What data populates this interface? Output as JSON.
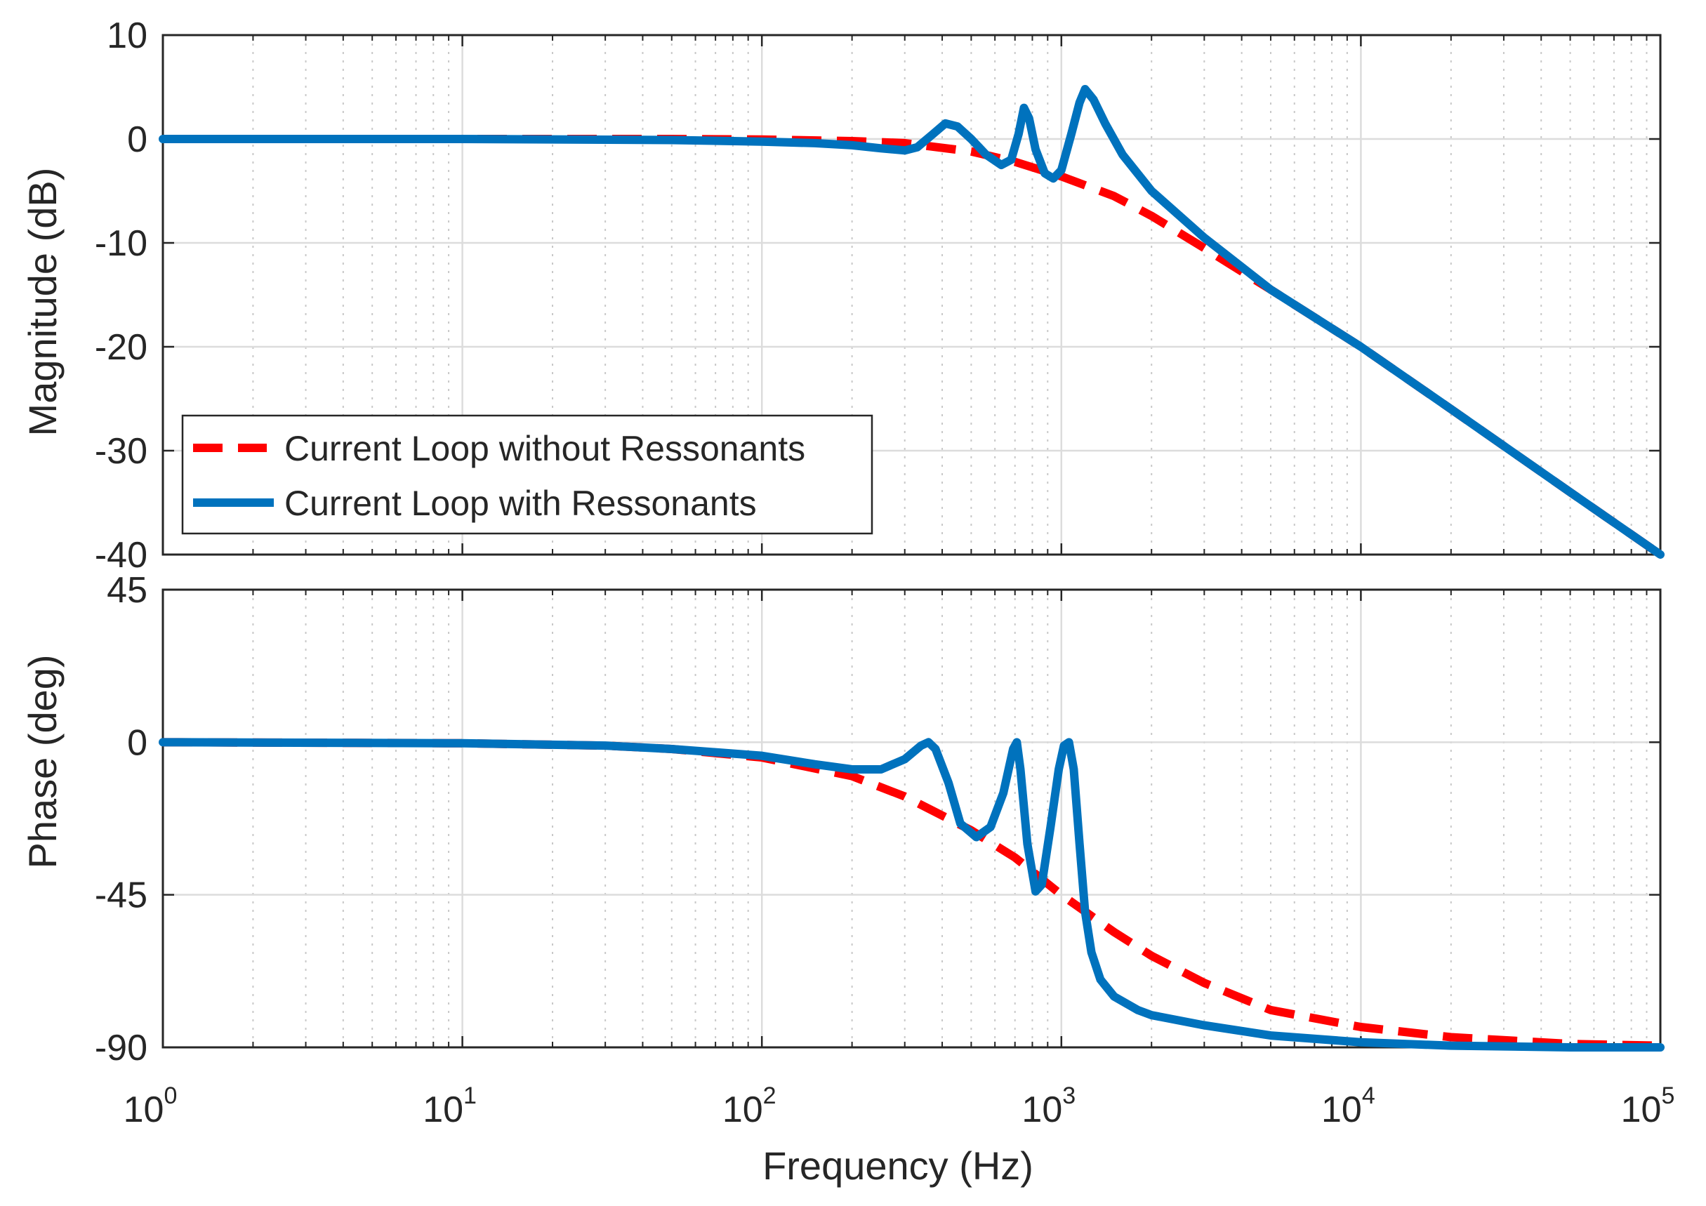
{
  "chart_data": {
    "type": "line",
    "title": "",
    "xlabel": "Frequency (Hz)",
    "x_scale": "log",
    "xlim": [
      1,
      100000
    ],
    "x_ticks": [
      {
        "base": "10",
        "exp": "0",
        "value": 1
      },
      {
        "base": "10",
        "exp": "1",
        "value": 10
      },
      {
        "base": "10",
        "exp": "2",
        "value": 100
      },
      {
        "base": "10",
        "exp": "3",
        "value": 1000
      },
      {
        "base": "10",
        "exp": "4",
        "value": 10000
      },
      {
        "base": "10",
        "exp": "5",
        "value": 100000
      }
    ],
    "grid": true,
    "legend": {
      "location": "bottom-left of magnitude plot",
      "entries": [
        {
          "label": "Current Loop without Ressonants",
          "color": "#ff0000",
          "style": "dashed"
        },
        {
          "label": "Current Loop with Ressonants",
          "color": "#0072bd",
          "style": "solid"
        }
      ]
    },
    "subplots": [
      {
        "name": "magnitude",
        "ylabel": "Magnitude (dB)",
        "ylim": [
          -40,
          10
        ],
        "y_ticks": [
          {
            "label": "10",
            "value": 10
          },
          {
            "label": "0",
            "value": 0
          },
          {
            "label": "-10",
            "value": -10
          },
          {
            "label": "-20",
            "value": -20
          },
          {
            "label": "-30",
            "value": -30
          },
          {
            "label": "-40",
            "value": -40
          }
        ],
        "series": [
          {
            "name": "Current Loop without Ressonants",
            "color": "#ff0000",
            "style": "dashed",
            "points": [
              [
                1,
                0
              ],
              [
                10,
                0
              ],
              [
                50,
                0
              ],
              [
                100,
                -0.05
              ],
              [
                200,
                -0.2
              ],
              [
                300,
                -0.4
              ],
              [
                500,
                -1.2
              ],
              [
                700,
                -2.2
              ],
              [
                1000,
                -3.6
              ],
              [
                1500,
                -5.5
              ],
              [
                2000,
                -7.4
              ],
              [
                3000,
                -10.5
              ],
              [
                5000,
                -14.5
              ],
              [
                10000,
                -20
              ],
              [
                20000,
                -26
              ],
              [
                50000,
                -34
              ],
              [
                100000,
                -40
              ]
            ]
          },
          {
            "name": "Current Loop with Ressonants",
            "color": "#0072bd",
            "style": "solid",
            "points": [
              [
                1,
                0
              ],
              [
                10,
                0
              ],
              [
                50,
                -0.1
              ],
              [
                100,
                -0.25
              ],
              [
                150,
                -0.4
              ],
              [
                200,
                -0.6
              ],
              [
                250,
                -0.9
              ],
              [
                300,
                -1.1
              ],
              [
                330,
                -0.8
              ],
              [
                370,
                0.4
              ],
              [
                410,
                1.5
              ],
              [
                450,
                1.2
              ],
              [
                500,
                0
              ],
              [
                560,
                -1.5
              ],
              [
                630,
                -2.5
              ],
              [
                680,
                -2.0
              ],
              [
                720,
                0.5
              ],
              [
                750,
                3.0
              ],
              [
                780,
                2.0
              ],
              [
                820,
                -1.0
              ],
              [
                880,
                -3.3
              ],
              [
                940,
                -3.8
              ],
              [
                1000,
                -3.0
              ],
              [
                1080,
                0.5
              ],
              [
                1150,
                3.5
              ],
              [
                1200,
                4.8
              ],
              [
                1280,
                3.8
              ],
              [
                1400,
                1.5
              ],
              [
                1600,
                -1.5
              ],
              [
                2000,
                -5.0
              ],
              [
                3000,
                -9.5
              ],
              [
                5000,
                -14.5
              ],
              [
                10000,
                -20
              ],
              [
                20000,
                -26
              ],
              [
                50000,
                -34
              ],
              [
                100000,
                -40
              ]
            ]
          }
        ]
      },
      {
        "name": "phase",
        "ylabel": "Phase (deg)",
        "ylim": [
          -90,
          45
        ],
        "y_ticks": [
          {
            "label": "45",
            "value": 45
          },
          {
            "label": "0",
            "value": 0
          },
          {
            "label": "-45",
            "value": -45
          },
          {
            "label": "-90",
            "value": -90
          }
        ],
        "series": [
          {
            "name": "Current Loop without Ressonants",
            "color": "#ff0000",
            "style": "dashed",
            "points": [
              [
                1,
                0
              ],
              [
                10,
                -0.3
              ],
              [
                30,
                -1
              ],
              [
                50,
                -2
              ],
              [
                100,
                -4.5
              ],
              [
                200,
                -10
              ],
              [
                300,
                -16
              ],
              [
                500,
                -26
              ],
              [
                700,
                -34
              ],
              [
                1000,
                -45
              ],
              [
                1500,
                -56
              ],
              [
                2000,
                -63
              ],
              [
                3000,
                -71
              ],
              [
                5000,
                -79
              ],
              [
                10000,
                -84
              ],
              [
                20000,
                -87
              ],
              [
                50000,
                -89
              ],
              [
                100000,
                -89.5
              ]
            ]
          },
          {
            "name": "Current Loop with Ressonants",
            "color": "#0072bd",
            "style": "solid",
            "points": [
              [
                1,
                0
              ],
              [
                10,
                -0.3
              ],
              [
                30,
                -1
              ],
              [
                50,
                -2
              ],
              [
                100,
                -4
              ],
              [
                150,
                -6.5
              ],
              [
                200,
                -8
              ],
              [
                250,
                -8
              ],
              [
                300,
                -5
              ],
              [
                340,
                -1
              ],
              [
                360,
                0
              ],
              [
                380,
                -2
              ],
              [
                420,
                -12
              ],
              [
                460,
                -24
              ],
              [
                520,
                -28
              ],
              [
                580,
                -25
              ],
              [
                640,
                -15
              ],
              [
                690,
                -2
              ],
              [
                710,
                0
              ],
              [
                730,
                -8
              ],
              [
                770,
                -30
              ],
              [
                820,
                -44
              ],
              [
                860,
                -42
              ],
              [
                920,
                -25
              ],
              [
                980,
                -8
              ],
              [
                1020,
                -1
              ],
              [
                1060,
                0
              ],
              [
                1100,
                -8
              ],
              [
                1150,
                -30
              ],
              [
                1200,
                -50
              ],
              [
                1260,
                -62
              ],
              [
                1350,
                -70
              ],
              [
                1500,
                -75
              ],
              [
                1800,
                -79
              ],
              [
                2000,
                -80.5
              ],
              [
                3000,
                -83.5
              ],
              [
                5000,
                -86.5
              ],
              [
                10000,
                -88.5
              ],
              [
                20000,
                -89.5
              ],
              [
                50000,
                -90
              ],
              [
                100000,
                -90
              ]
            ]
          }
        ]
      }
    ]
  }
}
